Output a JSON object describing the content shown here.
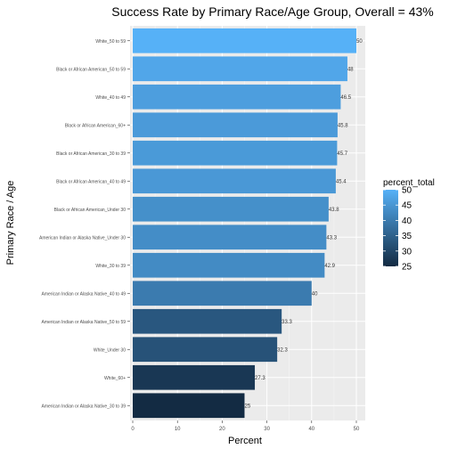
{
  "chart_data": {
    "type": "bar",
    "orientation": "horizontal",
    "title": "Success Rate by Primary Race/Age Group, Overall = 43%",
    "xlabel": "Percent",
    "ylabel": "Primary Race / Age",
    "xlim": [
      0,
      50
    ],
    "xticks": [
      "0",
      "10",
      "20",
      "30",
      "40",
      "50"
    ],
    "grid": true,
    "legend_placement": "right",
    "legend": {
      "title": "percent_total",
      "ticks": [
        "50",
        "45",
        "40",
        "35",
        "30",
        "25"
      ],
      "range": [
        25,
        50
      ],
      "color_low": "#132B43",
      "color_high": "#56B1F7"
    },
    "categories": [
      "White_50 to 59",
      "Black or African American_50 to 59",
      "White_40 to 49",
      "Black or African American_60+",
      "Black or African American_30 to 39",
      "Black or African American_40 to 49",
      "Black or African American_Under 30",
      "American Indian or Alaska Native_Under 30",
      "White_30 to 39",
      "American Indian or Alaska Native_40 to 49",
      "American Indian or Alaska Native_50 to 59",
      "White_Under 30",
      "White_60+",
      "American Indian or Alaska Native_30 to 39"
    ],
    "values": [
      50,
      48,
      46.5,
      45.8,
      45.7,
      45.4,
      43.8,
      43.3,
      42.9,
      40,
      33.3,
      32.3,
      27.3,
      25
    ],
    "value_labels": [
      "50",
      "48",
      "46.5",
      "45.8",
      "45.7",
      "45.4",
      "43.8",
      "43.3",
      "42.9",
      "40",
      "33.3",
      "32.3",
      "27.3",
      "25"
    ]
  }
}
